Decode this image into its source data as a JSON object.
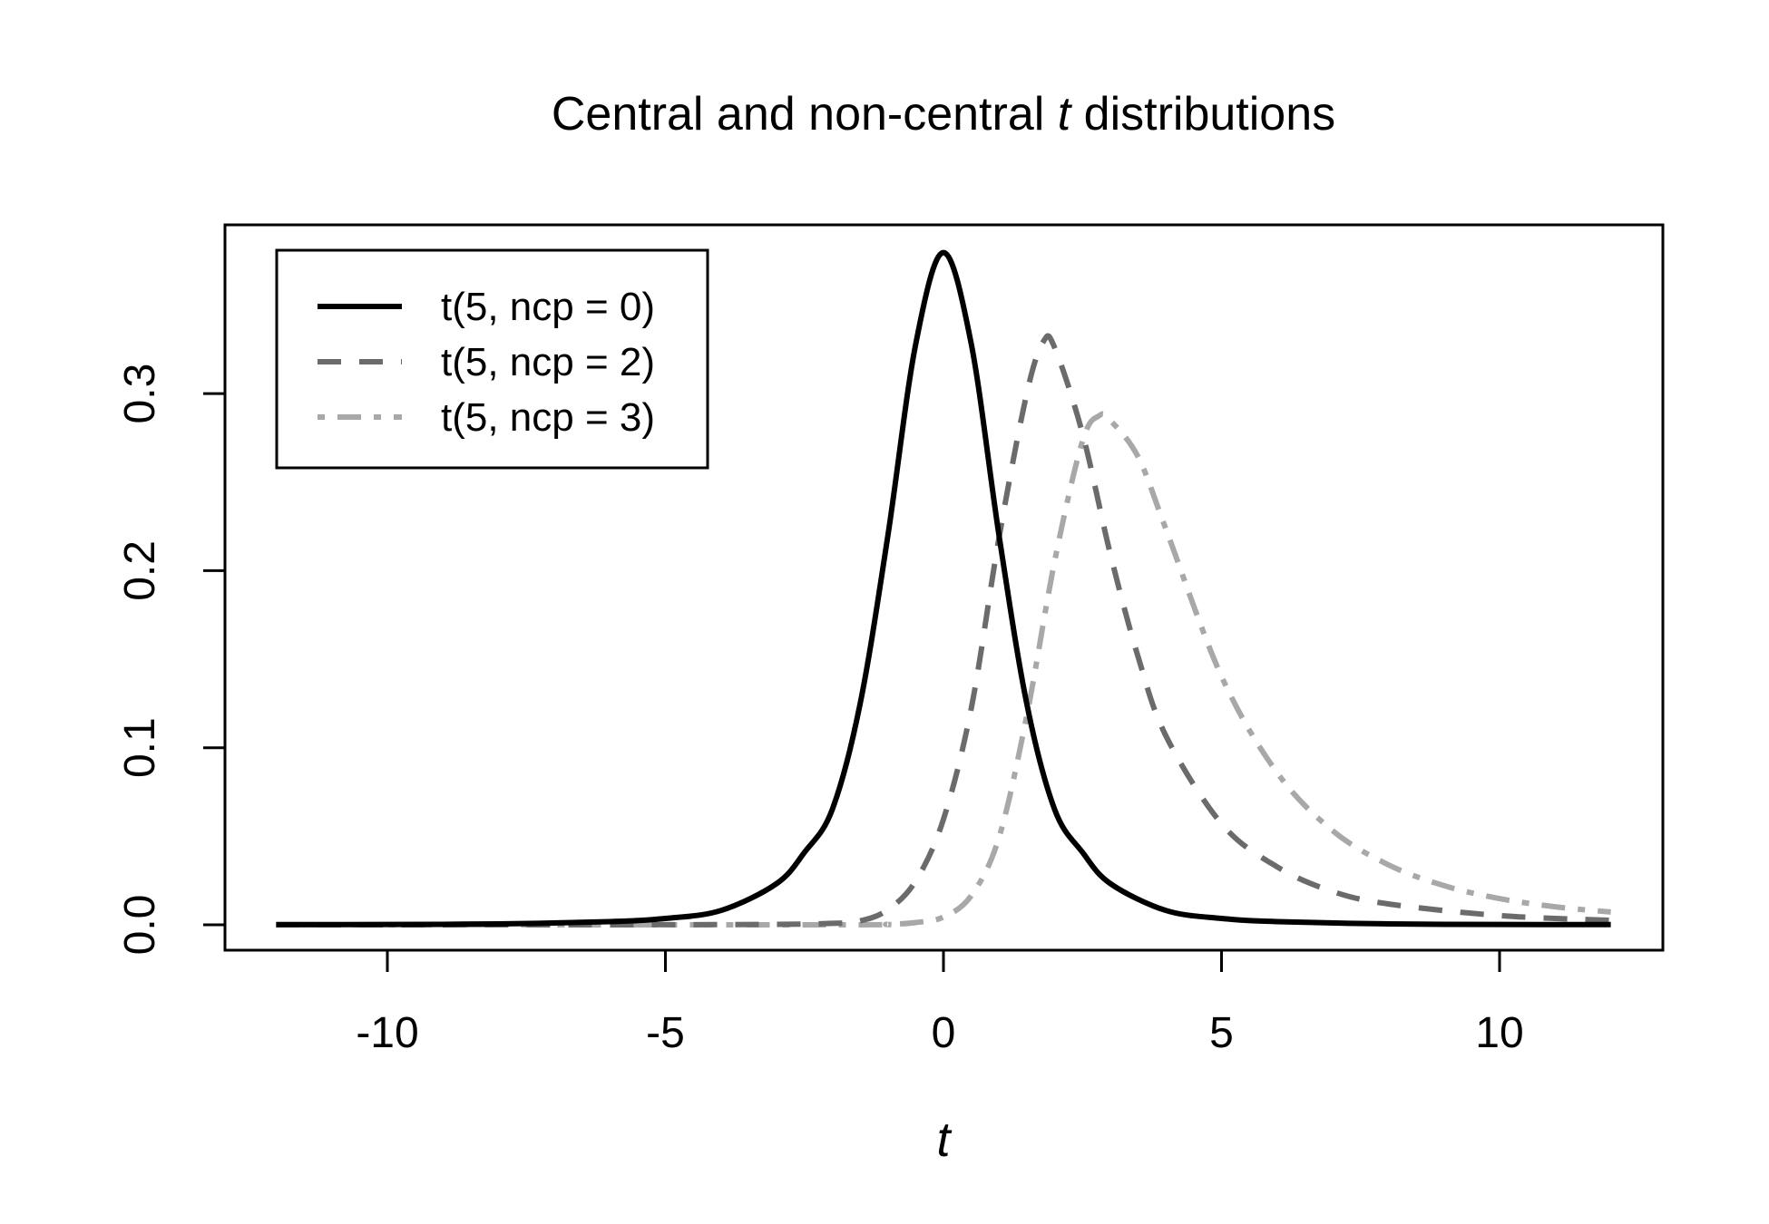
{
  "chart_data": {
    "type": "line",
    "title_pre": "Central and non-central ",
    "title_var": "t",
    "title_post": " distributions",
    "xlabel": "t",
    "ylabel": "",
    "xlim": [
      -12,
      12
    ],
    "ylim": [
      0,
      0.38
    ],
    "xticks": [
      -10,
      -5,
      0,
      5,
      10
    ],
    "xtick_labels": [
      "-10",
      "-5",
      "0",
      "5",
      "10"
    ],
    "yticks": [
      0,
      0.1,
      0.2,
      0.3
    ],
    "ytick_labels": [
      "0.0",
      "0.1",
      "0.2",
      "0.3"
    ],
    "grid": false,
    "legend_position": "top-left",
    "series": [
      {
        "name": "t(5, ncp = 0)",
        "color": "#000000",
        "dash": "solid",
        "x": [
          -12,
          -10,
          -8,
          -6,
          -5,
          -4,
          -3,
          -2.5,
          -2,
          -1.5,
          -1,
          -0.5,
          0,
          0.5,
          1,
          1.5,
          2,
          2.5,
          3,
          4,
          5,
          6,
          8,
          10,
          12
        ],
        "y": [
          0.0001,
          0.0002,
          0.0005,
          0.0018,
          0.0036,
          0.0081,
          0.0233,
          0.0409,
          0.0651,
          0.1245,
          0.2197,
          0.3279,
          0.3796,
          0.3279,
          0.2197,
          0.1245,
          0.0651,
          0.0409,
          0.0233,
          0.0081,
          0.0036,
          0.0018,
          0.0005,
          0.0002,
          0.0001
        ]
      },
      {
        "name": "t(5, ncp = 2)",
        "color": "#6b6b6b",
        "dash": "dashed",
        "x": [
          -12,
          -4,
          -2,
          -1.5,
          -1,
          -0.5,
          0,
          0.5,
          1,
          1.5,
          1.8,
          2,
          2.5,
          3,
          3.5,
          4,
          5,
          6,
          7,
          8,
          10,
          12
        ],
        "y": [
          0,
          0.0001,
          0.0008,
          0.0022,
          0.0085,
          0.0248,
          0.0596,
          0.1224,
          0.2188,
          0.3004,
          0.3295,
          0.3259,
          0.2774,
          0.2095,
          0.1514,
          0.1067,
          0.0571,
          0.0327,
          0.0188,
          0.0118,
          0.0052,
          0.0025
        ]
      },
      {
        "name": "t(5, ncp = 3)",
        "color": "#a8a8a8",
        "dash": "dashdot",
        "x": [
          -12,
          -2,
          -1,
          -0.5,
          0,
          0.5,
          1,
          1.5,
          2,
          2.5,
          2.8,
          3,
          3.5,
          4,
          5,
          6,
          7,
          8,
          9,
          10,
          11,
          12
        ],
        "y": [
          0,
          0,
          0.0003,
          0.0013,
          0.0044,
          0.0165,
          0.0494,
          0.1185,
          0.2055,
          0.2732,
          0.2875,
          0.2848,
          0.2643,
          0.2235,
          0.1403,
          0.0859,
          0.0531,
          0.0339,
          0.0221,
          0.0148,
          0.0102,
          0.0072
        ]
      }
    ]
  }
}
